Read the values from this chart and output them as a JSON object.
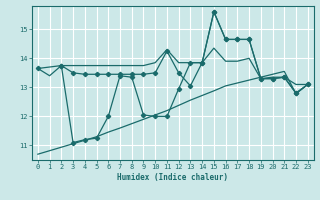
{
  "xlabel": "Humidex (Indice chaleur)",
  "bg_color": "#cce8e8",
  "grid_color": "#ffffff",
  "line_color": "#1a6b6b",
  "xlim": [
    -0.5,
    23.5
  ],
  "ylim": [
    10.5,
    15.8
  ],
  "yticks": [
    11,
    12,
    13,
    14,
    15
  ],
  "xticks": [
    0,
    1,
    2,
    3,
    4,
    5,
    6,
    7,
    8,
    9,
    10,
    11,
    12,
    13,
    14,
    15,
    16,
    17,
    18,
    19,
    20,
    21,
    22,
    23
  ],
  "line1_x": [
    0,
    1,
    2,
    3,
    4,
    5,
    6,
    7,
    8,
    9,
    10,
    11,
    12,
    13,
    14,
    15,
    16,
    17,
    18,
    19,
    20,
    21,
    22,
    23
  ],
  "line1_y": [
    13.65,
    13.4,
    13.75,
    13.75,
    13.75,
    13.75,
    13.75,
    13.75,
    13.75,
    13.75,
    13.85,
    14.3,
    13.85,
    13.85,
    13.85,
    14.35,
    13.9,
    13.9,
    14.0,
    13.3,
    13.35,
    13.35,
    13.1,
    13.1
  ],
  "line2_x": [
    0,
    2,
    3,
    4,
    5,
    6,
    7,
    8,
    9,
    10,
    11,
    12,
    13,
    14,
    15,
    16,
    17,
    18,
    19,
    20,
    21,
    22,
    23
  ],
  "line2_y": [
    13.65,
    13.75,
    13.5,
    13.45,
    13.45,
    13.45,
    13.45,
    13.45,
    13.45,
    13.5,
    14.25,
    13.5,
    13.05,
    13.85,
    15.6,
    14.65,
    14.65,
    14.65,
    13.3,
    13.3,
    13.35,
    12.8,
    13.1
  ],
  "line3_x": [
    2,
    3,
    4,
    5,
    6,
    7,
    8,
    9,
    10,
    11,
    12,
    13,
    14,
    15,
    16,
    17,
    18,
    19,
    20,
    21,
    22,
    23
  ],
  "line3_y": [
    13.75,
    11.1,
    11.2,
    11.25,
    12.0,
    13.4,
    13.35,
    12.05,
    12.0,
    12.0,
    12.95,
    13.85,
    13.85,
    15.6,
    14.65,
    14.65,
    14.65,
    13.3,
    13.3,
    13.35,
    12.8,
    13.1
  ],
  "line4_x": [
    0,
    1,
    2,
    3,
    4,
    5,
    6,
    7,
    8,
    9,
    10,
    11,
    12,
    13,
    14,
    15,
    16,
    17,
    18,
    19,
    20,
    21,
    22,
    23
  ],
  "line4_y": [
    10.7,
    10.82,
    10.94,
    11.06,
    11.18,
    11.3,
    11.46,
    11.6,
    11.75,
    11.9,
    12.05,
    12.2,
    12.38,
    12.56,
    12.72,
    12.88,
    13.05,
    13.15,
    13.25,
    13.35,
    13.45,
    13.55,
    12.78,
    13.1
  ]
}
